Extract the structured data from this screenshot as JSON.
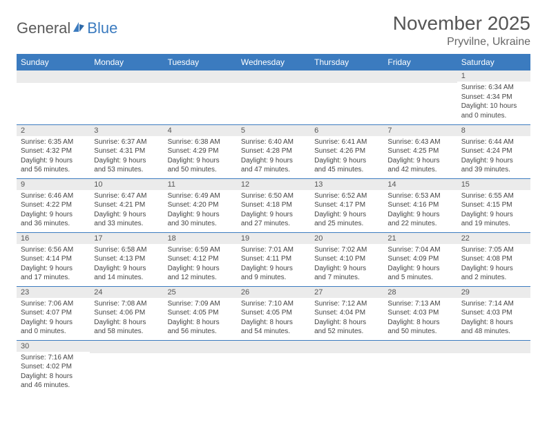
{
  "header": {
    "logo_part1": "General",
    "logo_part2": "Blue",
    "month_title": "November 2025",
    "location": "Pryvilne, Ukraine"
  },
  "styling": {
    "header_bg": "#3b7bbf",
    "header_text": "#ffffff",
    "daynum_bg": "#ebebeb",
    "row_divider": "#3b7bbf",
    "body_text": "#444444",
    "title_color": "#555555",
    "cell_fontsize": 10,
    "daynum_fontsize": 11,
    "header_fontsize": 12,
    "title_fontsize": 28,
    "location_fontsize": 16
  },
  "columns": [
    "Sunday",
    "Monday",
    "Tuesday",
    "Wednesday",
    "Thursday",
    "Friday",
    "Saturday"
  ],
  "weeks": [
    [
      null,
      null,
      null,
      null,
      null,
      null,
      {
        "n": "1",
        "sr": "6:34 AM",
        "ss": "4:34 PM",
        "dl": "10 hours and 0 minutes."
      }
    ],
    [
      {
        "n": "2",
        "sr": "6:35 AM",
        "ss": "4:32 PM",
        "dl": "9 hours and 56 minutes."
      },
      {
        "n": "3",
        "sr": "6:37 AM",
        "ss": "4:31 PM",
        "dl": "9 hours and 53 minutes."
      },
      {
        "n": "4",
        "sr": "6:38 AM",
        "ss": "4:29 PM",
        "dl": "9 hours and 50 minutes."
      },
      {
        "n": "5",
        "sr": "6:40 AM",
        "ss": "4:28 PM",
        "dl": "9 hours and 47 minutes."
      },
      {
        "n": "6",
        "sr": "6:41 AM",
        "ss": "4:26 PM",
        "dl": "9 hours and 45 minutes."
      },
      {
        "n": "7",
        "sr": "6:43 AM",
        "ss": "4:25 PM",
        "dl": "9 hours and 42 minutes."
      },
      {
        "n": "8",
        "sr": "6:44 AM",
        "ss": "4:24 PM",
        "dl": "9 hours and 39 minutes."
      }
    ],
    [
      {
        "n": "9",
        "sr": "6:46 AM",
        "ss": "4:22 PM",
        "dl": "9 hours and 36 minutes."
      },
      {
        "n": "10",
        "sr": "6:47 AM",
        "ss": "4:21 PM",
        "dl": "9 hours and 33 minutes."
      },
      {
        "n": "11",
        "sr": "6:49 AM",
        "ss": "4:20 PM",
        "dl": "9 hours and 30 minutes."
      },
      {
        "n": "12",
        "sr": "6:50 AM",
        "ss": "4:18 PM",
        "dl": "9 hours and 27 minutes."
      },
      {
        "n": "13",
        "sr": "6:52 AM",
        "ss": "4:17 PM",
        "dl": "9 hours and 25 minutes."
      },
      {
        "n": "14",
        "sr": "6:53 AM",
        "ss": "4:16 PM",
        "dl": "9 hours and 22 minutes."
      },
      {
        "n": "15",
        "sr": "6:55 AM",
        "ss": "4:15 PM",
        "dl": "9 hours and 19 minutes."
      }
    ],
    [
      {
        "n": "16",
        "sr": "6:56 AM",
        "ss": "4:14 PM",
        "dl": "9 hours and 17 minutes."
      },
      {
        "n": "17",
        "sr": "6:58 AM",
        "ss": "4:13 PM",
        "dl": "9 hours and 14 minutes."
      },
      {
        "n": "18",
        "sr": "6:59 AM",
        "ss": "4:12 PM",
        "dl": "9 hours and 12 minutes."
      },
      {
        "n": "19",
        "sr": "7:01 AM",
        "ss": "4:11 PM",
        "dl": "9 hours and 9 minutes."
      },
      {
        "n": "20",
        "sr": "7:02 AM",
        "ss": "4:10 PM",
        "dl": "9 hours and 7 minutes."
      },
      {
        "n": "21",
        "sr": "7:04 AM",
        "ss": "4:09 PM",
        "dl": "9 hours and 5 minutes."
      },
      {
        "n": "22",
        "sr": "7:05 AM",
        "ss": "4:08 PM",
        "dl": "9 hours and 2 minutes."
      }
    ],
    [
      {
        "n": "23",
        "sr": "7:06 AM",
        "ss": "4:07 PM",
        "dl": "9 hours and 0 minutes."
      },
      {
        "n": "24",
        "sr": "7:08 AM",
        "ss": "4:06 PM",
        "dl": "8 hours and 58 minutes."
      },
      {
        "n": "25",
        "sr": "7:09 AM",
        "ss": "4:05 PM",
        "dl": "8 hours and 56 minutes."
      },
      {
        "n": "26",
        "sr": "7:10 AM",
        "ss": "4:05 PM",
        "dl": "8 hours and 54 minutes."
      },
      {
        "n": "27",
        "sr": "7:12 AM",
        "ss": "4:04 PM",
        "dl": "8 hours and 52 minutes."
      },
      {
        "n": "28",
        "sr": "7:13 AM",
        "ss": "4:03 PM",
        "dl": "8 hours and 50 minutes."
      },
      {
        "n": "29",
        "sr": "7:14 AM",
        "ss": "4:03 PM",
        "dl": "8 hours and 48 minutes."
      }
    ],
    [
      {
        "n": "30",
        "sr": "7:16 AM",
        "ss": "4:02 PM",
        "dl": "8 hours and 46 minutes."
      },
      null,
      null,
      null,
      null,
      null,
      null
    ]
  ],
  "labels": {
    "sunrise": "Sunrise:",
    "sunset": "Sunset:",
    "daylight": "Daylight:"
  }
}
